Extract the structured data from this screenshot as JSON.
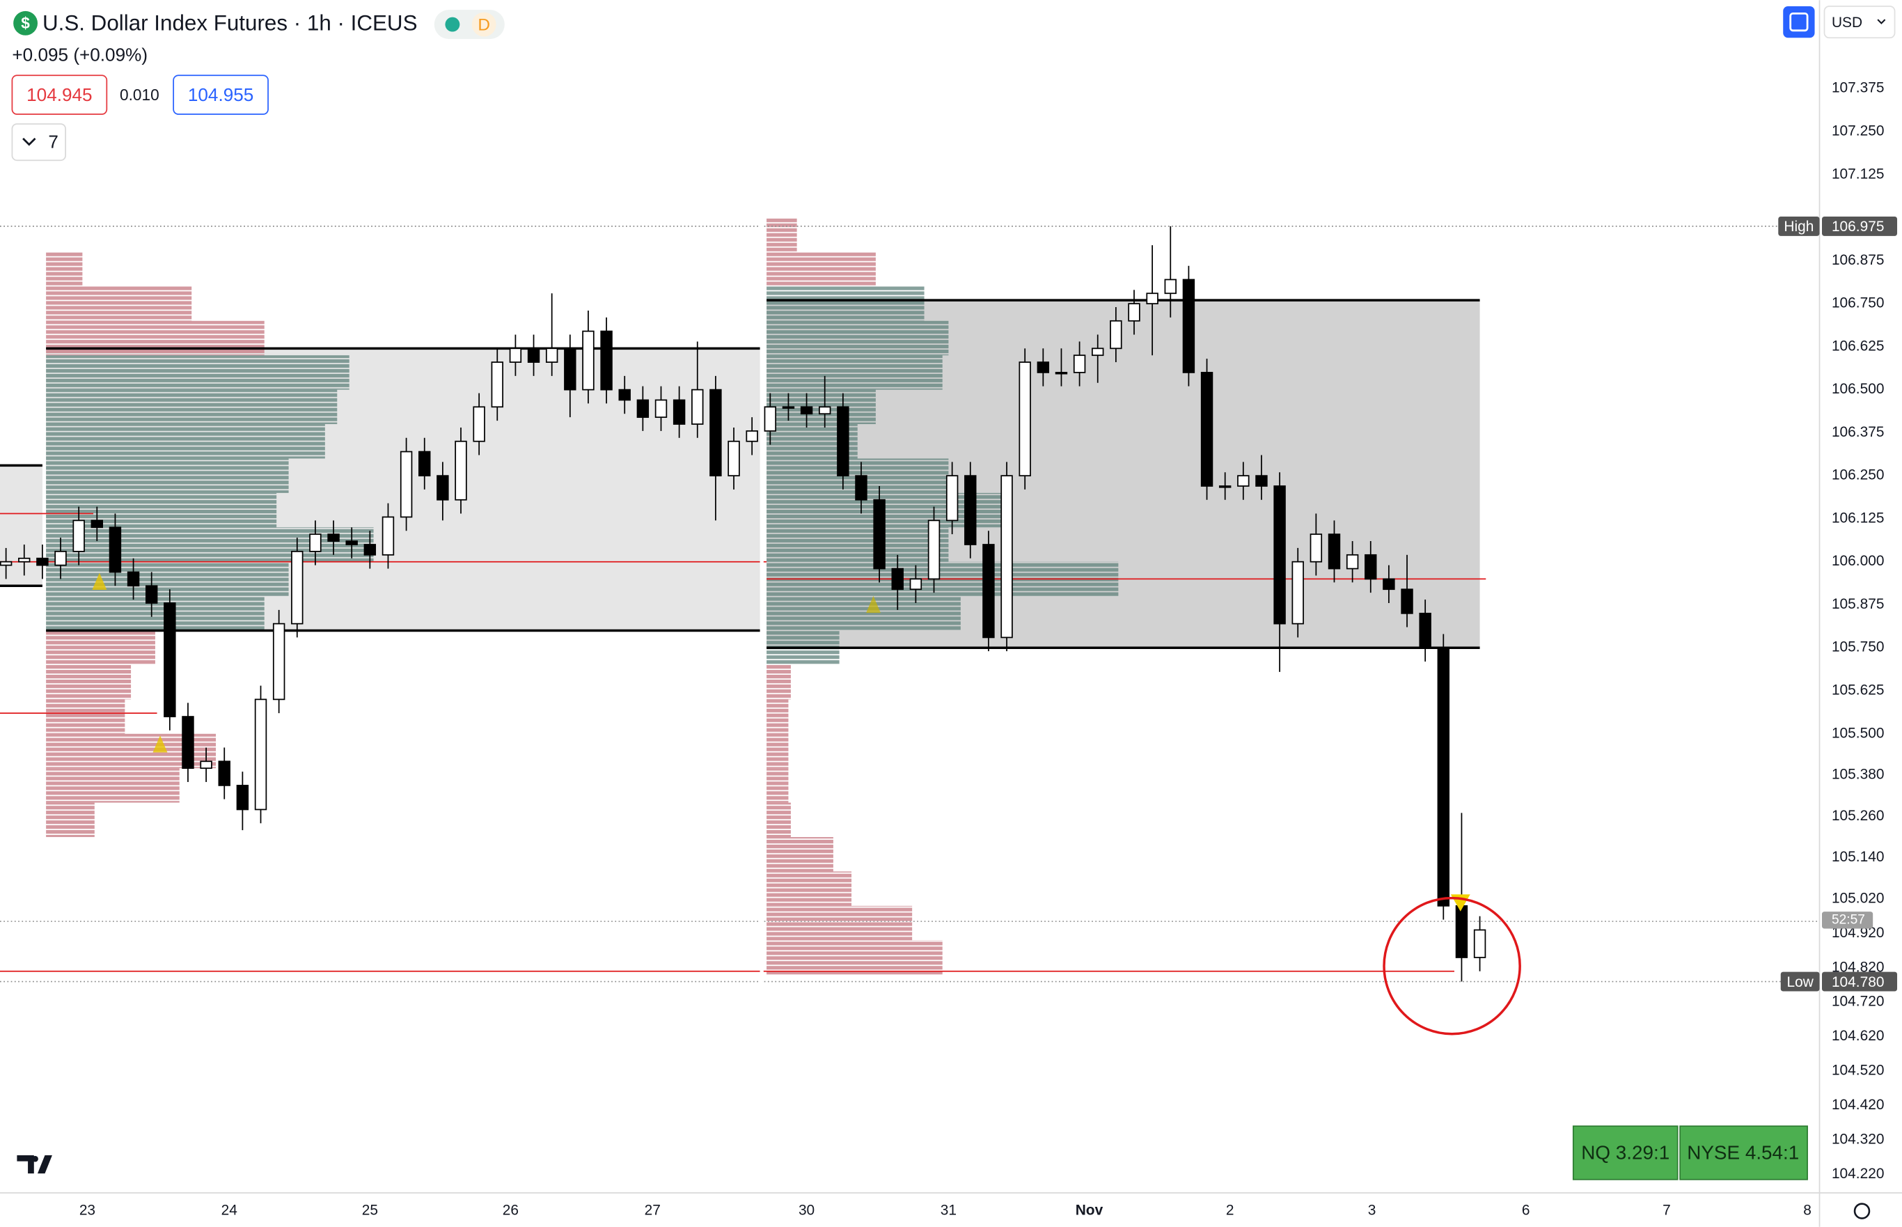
{
  "header": {
    "icon": "$",
    "title": "U.S. Dollar Index Futures · 1h · ICEUS",
    "badge": "D",
    "change": "+0.095 (+0.09%)",
    "bid": "104.945",
    "spread": "0.010",
    "ask": "104.955",
    "indicators": "7",
    "currency": "USD"
  },
  "footer": {
    "ratios": [
      "NQ 3.29:1",
      "NYSE 4.54:1"
    ]
  },
  "chart_data": {
    "type": "candlestick",
    "open": [
      105.99,
      106.0,
      106.01,
      105.99,
      106.03,
      106.12,
      106.1,
      105.97,
      105.93,
      105.88,
      105.55,
      105.4,
      105.42,
      105.35,
      105.28,
      105.6,
      105.82,
      106.03,
      106.08,
      106.06,
      106.05,
      106.02,
      106.13,
      106.32,
      106.25,
      106.18,
      106.35,
      106.45,
      106.58,
      106.62,
      106.58,
      106.62,
      106.5,
      106.67,
      106.5,
      106.47,
      106.42,
      106.47,
      106.4,
      106.5,
      106.25,
      106.35,
      106.38,
      106.45,
      106.45,
      106.43,
      106.45,
      106.25,
      106.18,
      105.98,
      105.92,
      105.95,
      106.12,
      106.25,
      106.05,
      105.78,
      106.25,
      106.58,
      106.55,
      106.55,
      106.6,
      106.62,
      106.7,
      106.75,
      106.78,
      106.82,
      106.55,
      106.22,
      106.22,
      106.25,
      106.22,
      105.82,
      106.0,
      106.08,
      105.98,
      106.02,
      105.95,
      105.92,
      105.85,
      105.75,
      105.0,
      104.85
    ],
    "high": [
      106.04,
      106.05,
      106.05,
      106.07,
      106.16,
      106.16,
      106.14,
      106.01,
      105.97,
      105.92,
      105.59,
      105.46,
      105.46,
      105.39,
      105.64,
      105.86,
      106.07,
      106.12,
      106.12,
      106.1,
      106.09,
      106.17,
      106.36,
      106.36,
      106.29,
      106.39,
      106.49,
      106.62,
      106.66,
      106.66,
      106.78,
      106.66,
      106.73,
      106.71,
      106.54,
      106.51,
      106.51,
      106.51,
      106.64,
      106.54,
      106.39,
      106.42,
      106.49,
      106.49,
      106.49,
      106.54,
      106.49,
      106.29,
      106.22,
      106.02,
      105.99,
      106.16,
      106.29,
      106.29,
      106.09,
      106.29,
      106.62,
      106.62,
      106.62,
      106.64,
      106.66,
      106.74,
      106.79,
      106.92,
      106.975,
      106.86,
      106.59,
      106.26,
      106.29,
      106.31,
      106.26,
      106.04,
      106.14,
      106.12,
      106.06,
      106.06,
      105.99,
      106.02,
      105.89,
      105.79,
      105.27,
      104.97
    ],
    "low": [
      105.95,
      105.96,
      105.95,
      105.95,
      105.99,
      106.06,
      105.93,
      105.89,
      105.84,
      105.51,
      105.36,
      105.36,
      105.31,
      105.22,
      105.24,
      105.56,
      105.78,
      105.99,
      106.02,
      106.01,
      105.98,
      105.98,
      106.09,
      106.21,
      106.12,
      106.14,
      106.31,
      106.41,
      106.54,
      106.54,
      106.54,
      106.42,
      106.46,
      106.46,
      106.43,
      106.38,
      106.38,
      106.36,
      106.36,
      106.12,
      106.21,
      106.31,
      106.34,
      106.41,
      106.39,
      106.39,
      106.21,
      106.14,
      105.94,
      105.86,
      105.88,
      105.91,
      106.08,
      106.01,
      105.74,
      105.74,
      106.21,
      106.51,
      106.51,
      106.51,
      106.52,
      106.58,
      106.66,
      106.6,
      106.71,
      106.51,
      106.18,
      106.18,
      106.18,
      106.18,
      105.68,
      105.78,
      105.96,
      105.94,
      105.94,
      105.91,
      105.88,
      105.81,
      105.71,
      104.96,
      104.78,
      104.81
    ],
    "close": [
      106.0,
      106.01,
      105.99,
      106.03,
      106.12,
      106.1,
      105.97,
      105.93,
      105.88,
      105.55,
      105.4,
      105.42,
      105.35,
      105.28,
      105.6,
      105.82,
      106.03,
      106.08,
      106.06,
      106.05,
      106.02,
      106.13,
      106.32,
      106.25,
      106.18,
      106.35,
      106.45,
      106.58,
      106.62,
      106.58,
      106.62,
      106.5,
      106.67,
      106.5,
      106.47,
      106.42,
      106.47,
      106.4,
      106.5,
      106.25,
      106.35,
      106.38,
      106.45,
      106.45,
      106.43,
      106.45,
      106.25,
      106.18,
      105.98,
      105.92,
      105.95,
      106.12,
      106.25,
      106.05,
      105.78,
      106.25,
      106.58,
      106.55,
      106.55,
      106.6,
      106.62,
      106.7,
      106.75,
      106.78,
      106.82,
      106.55,
      106.22,
      106.22,
      106.25,
      106.22,
      105.82,
      106.0,
      106.08,
      105.98,
      106.02,
      105.95,
      105.92,
      105.85,
      105.75,
      105.0,
      104.85,
      104.93
    ],
    "up_color": "#ffffff",
    "down_color": "#000000",
    "ylim": [
      104.166,
      107.632
    ],
    "yticks": [
      107.375,
      {
        "value": 107.25,
        "label": "107.250"
      },
      107.125,
      106.875,
      {
        "value": 106.75,
        "label": "106.750"
      },
      106.625,
      {
        "value": 106.5,
        "label": "106.500"
      },
      106.375,
      {
        "value": 106.25,
        "label": "106.250"
      },
      106.125,
      {
        "value": 106,
        "label": "106.000"
      },
      105.875,
      {
        "value": 105.75,
        "label": "105.750"
      },
      105.625,
      {
        "value": 105.5,
        "label": "105.500"
      },
      {
        "value": 105.38,
        "label": "105.380"
      },
      {
        "value": 105.26,
        "label": "105.260"
      },
      {
        "value": 105.14,
        "label": "105.140"
      },
      {
        "value": 105.02,
        "label": "105.020"
      },
      {
        "value": 104.92,
        "label": "104.920"
      },
      {
        "value": 104.82,
        "label": "104.820"
      },
      {
        "value": 104.72,
        "label": "104.720"
      },
      {
        "value": 104.62,
        "label": "104.620"
      },
      {
        "value": 104.52,
        "label": "104.520"
      },
      {
        "value": 104.42,
        "label": "104.420"
      },
      {
        "value": 104.32,
        "label": "104.320"
      },
      {
        "value": 104.22,
        "label": "104.220"
      }
    ],
    "xlim": [
      -0.33,
      99.67
    ],
    "xticks": [
      {
        "value": 4.47,
        "label": "23"
      },
      {
        "value": 12.27,
        "label": "24"
      },
      {
        "value": 20,
        "label": "25"
      },
      {
        "value": 27.73,
        "label": "26"
      },
      {
        "value": 35.53,
        "label": "27"
      },
      {
        "value": 44,
        "label": "30"
      },
      {
        "value": 51.8,
        "label": "31"
      },
      {
        "value": 59.53,
        "label": "Nov"
      },
      {
        "value": 67.27,
        "label": "2"
      },
      {
        "value": 75.07,
        "label": "3"
      },
      {
        "value": 83.53,
        "label": "6"
      },
      {
        "value": 91.27,
        "label": "7"
      },
      {
        "value": 99,
        "label": "8"
      }
    ],
    "sessions": [
      {
        "start": 2.2,
        "end": 41.5,
        "value_area_high": 106.62,
        "value_area_low": 105.8,
        "poc": 106.0,
        "box_color": "#e6e6e6",
        "prices": [
          106.85,
          106.75,
          106.65,
          106.55,
          106.45,
          106.35,
          106.25,
          106.15,
          106.05,
          105.95,
          105.85,
          105.75,
          105.65,
          105.55,
          105.45,
          105.35,
          105.25
        ],
        "volumes": [
          30,
          120,
          180,
          250,
          240,
          230,
          200,
          190,
          270,
          200,
          180,
          90,
          70,
          65,
          140,
          110,
          40
        ]
      },
      {
        "start": 41.8,
        "end": 81,
        "value_area_high": 106.76,
        "value_area_low": 105.75,
        "poc": 105.95,
        "box_color": "#d2d2d2",
        "prices": [
          106.95,
          106.85,
          106.75,
          106.65,
          106.55,
          106.45,
          106.35,
          106.25,
          106.15,
          106.05,
          105.95,
          105.85,
          105.75,
          105.65,
          105.55,
          105.45,
          105.35,
          105.25,
          105.15,
          105.05,
          104.95,
          104.85
        ],
        "volumes": [
          25,
          90,
          130,
          150,
          145,
          90,
          75,
          150,
          200,
          150,
          290,
          160,
          60,
          20,
          18,
          18,
          18,
          20,
          55,
          70,
          120,
          145
        ]
      }
    ],
    "zones": [
      {
        "top": 106.28,
        "bottom": 105.93,
        "end": 2
      }
    ],
    "levels": [
      {
        "price": 106.14,
        "end": 4.8
      },
      {
        "price": 105.56,
        "end": 8.3
      },
      {
        "price": 104.81,
        "end": 79.6
      }
    ],
    "high_marker": {
      "name": "High",
      "price": 106.975
    },
    "low_marker": {
      "name": "Low",
      "price": 104.78,
      "price_label": "104.780"
    },
    "last": {
      "price": 104.955,
      "countdown": "52:57"
    }
  }
}
